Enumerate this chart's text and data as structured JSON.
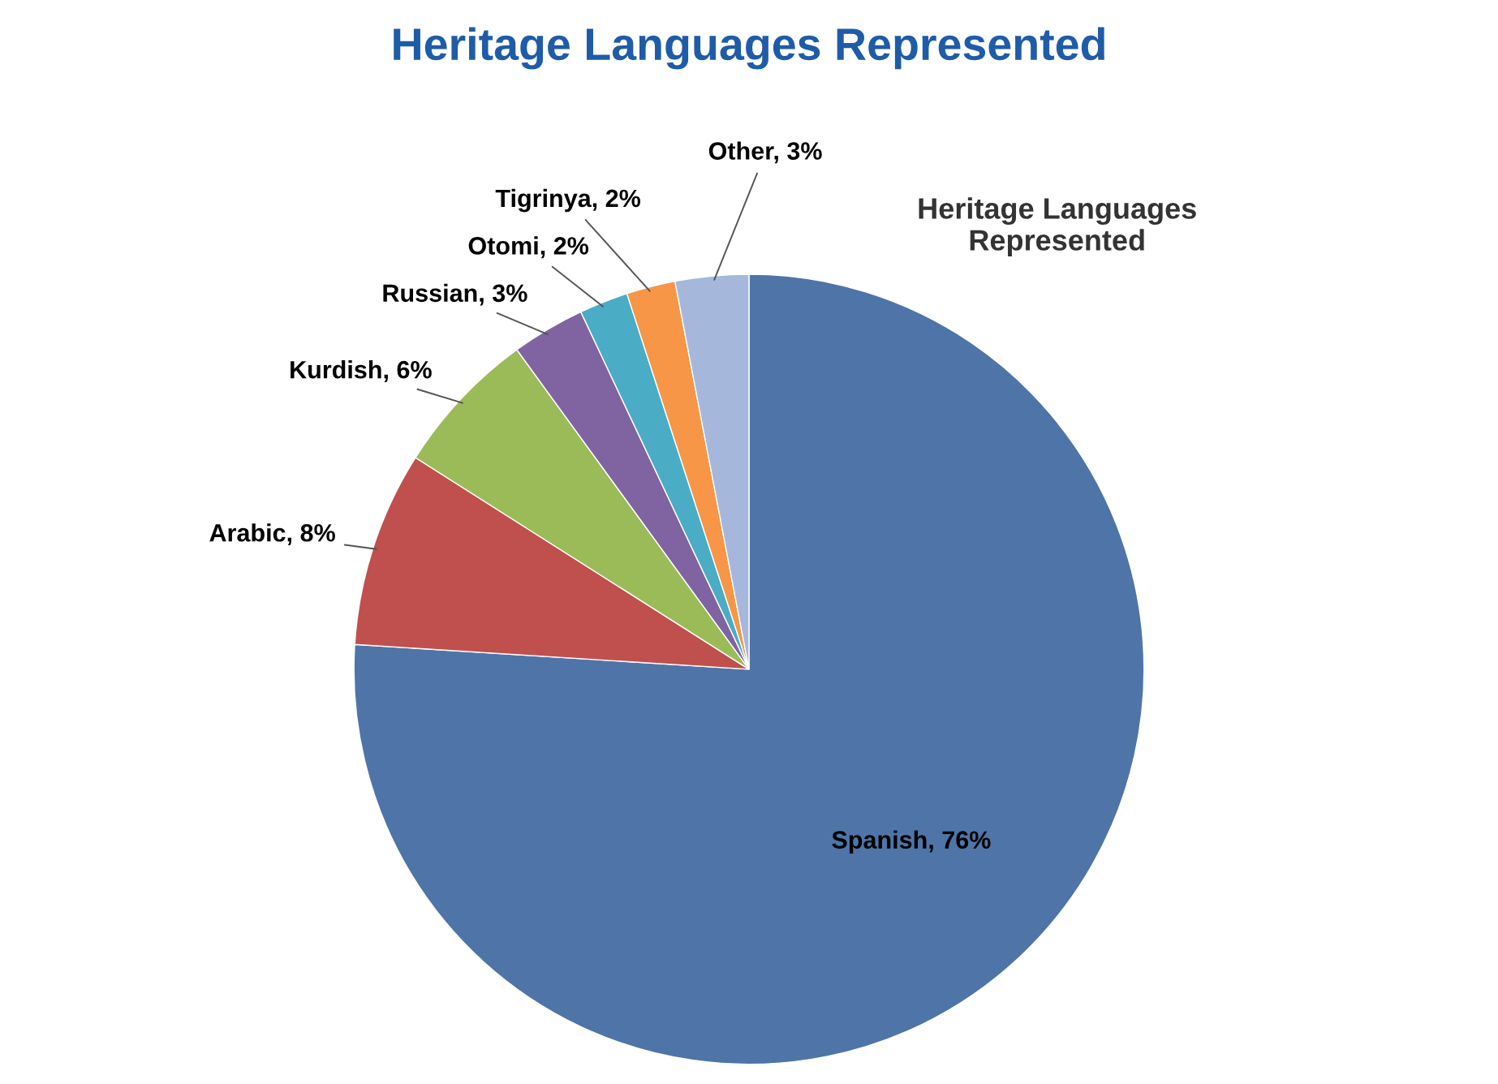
{
  "chart_data": {
    "type": "pie",
    "title": "Heritage Languages Represented",
    "subtitle": "Heritage Languages\nRepresented",
    "categories": [
      "Spanish",
      "Arabic",
      "Kurdish",
      "Russian",
      "Otomi",
      "Tigrinya",
      "Other"
    ],
    "values": [
      76,
      8,
      6,
      3,
      2,
      2,
      3
    ],
    "colors": [
      "#4f74a8",
      "#c0504d",
      "#9bbb59",
      "#8064a2",
      "#4bacc6",
      "#f79646",
      "#a5b8dc"
    ],
    "value_labels": [
      "76%",
      "8%",
      "6%",
      "3%",
      "2%",
      "2%",
      "3%"
    ],
    "legend": false
  }
}
